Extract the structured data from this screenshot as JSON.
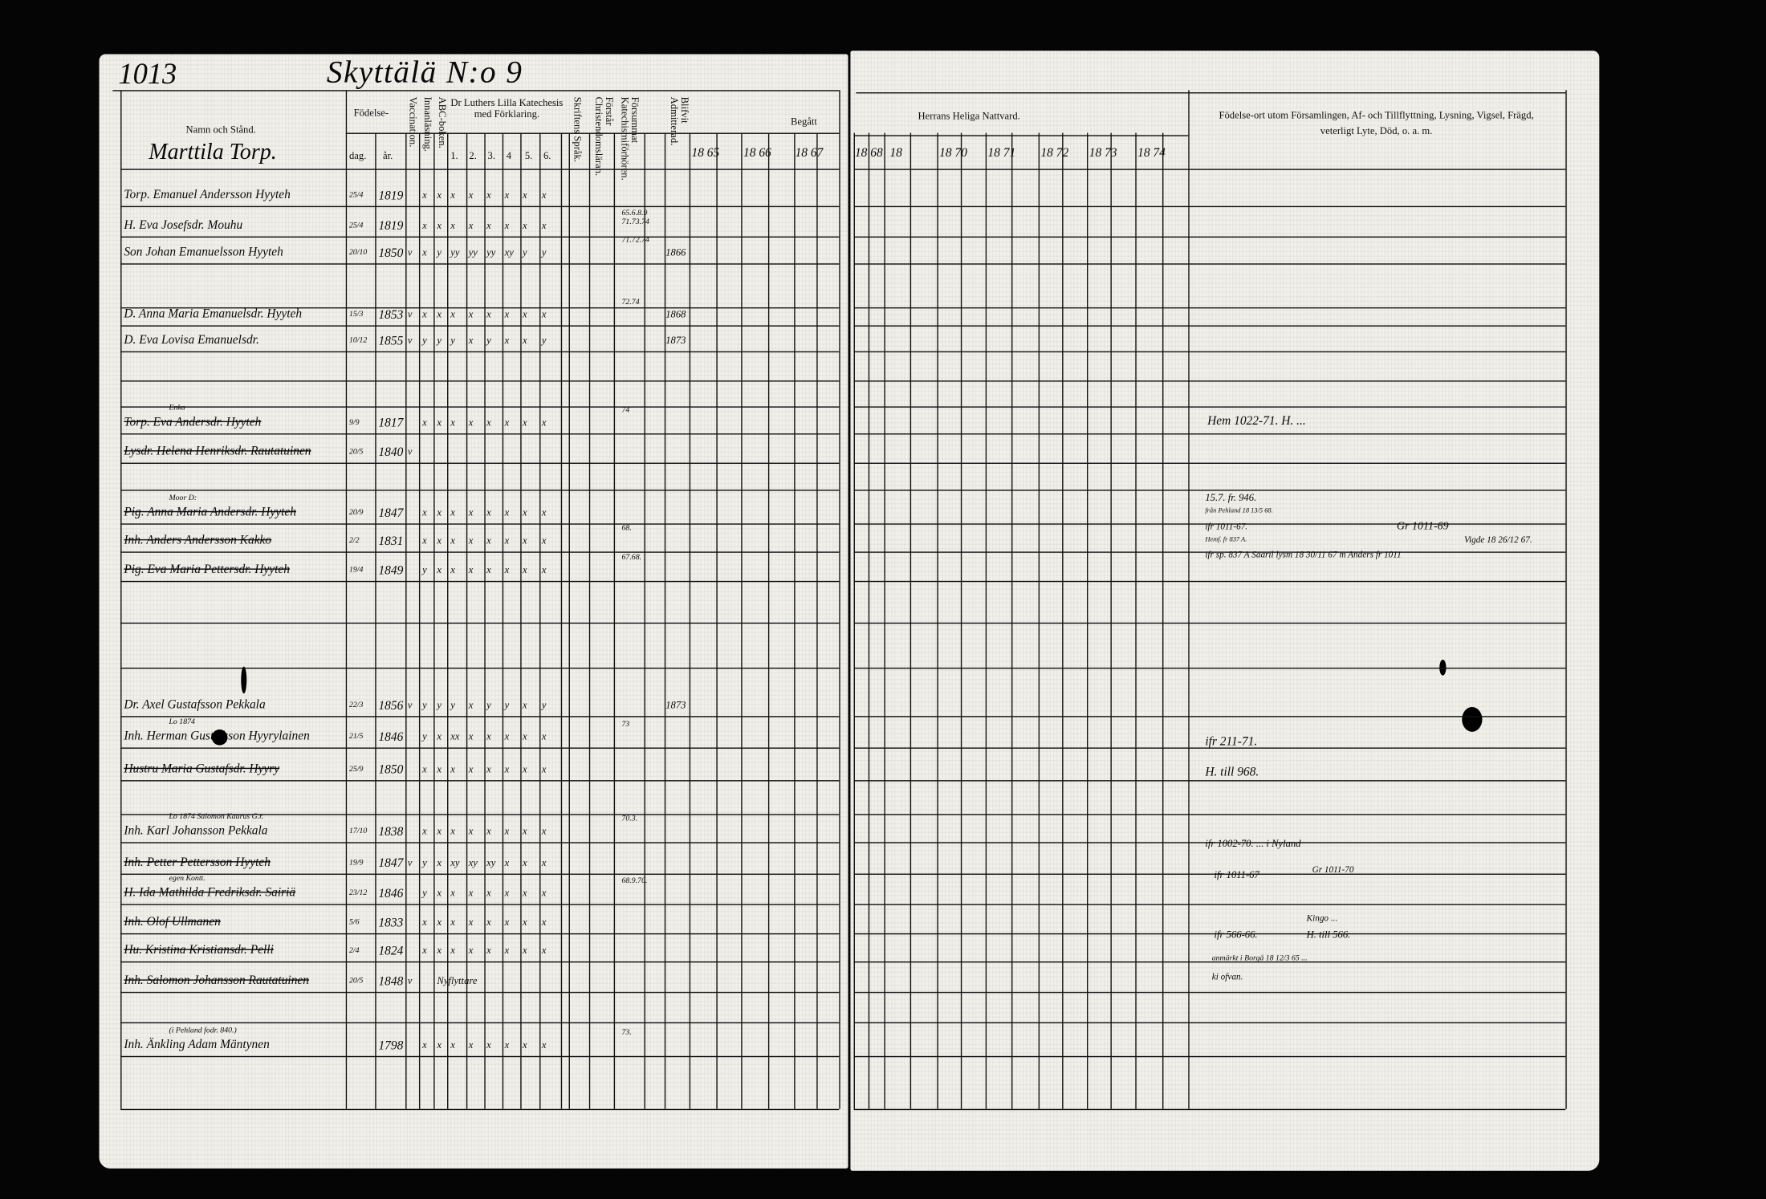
{
  "page_number": "1013",
  "village_heading": "Skyttälä N:o 9",
  "household_heading": "Marttila Torp.",
  "headers": {
    "name": "Namn och Stånd.",
    "birth": "Födelse-",
    "birth_day": "dag.",
    "birth_year": "år.",
    "vaccination": "Vaccination.",
    "reading": "Innanläsning.",
    "abc": "ABC-boken.",
    "catechism": "Dr Luthers Lilla Katechesis med Förklaring.",
    "catechism_cols": [
      "1.",
      "2.",
      "3.",
      "4",
      "5.",
      "6."
    ],
    "scripture": "Skriftens Språk.",
    "christian_doctrine": "Förstår Christendomsläran.",
    "missed_examination": "Försummat Katechismiförhören.",
    "admitted": "Blifvit Admitterad.",
    "begun": "Begått",
    "communion": "Herrans Heliga Nattvard.",
    "years_left": [
      "18 65",
      "18 66",
      "18 67"
    ],
    "years_right": [
      "18 68",
      "18",
      "18 70",
      "18 71",
      "18 72",
      "18 73",
      "18 74"
    ],
    "remarks": "Födelse-ort utom Församlingen, Af- och Tillflyttning, Lysning, Vigsel, Frägd, veterligt Lyte, Död, o. a. m."
  },
  "rows": [
    {
      "name": "Torp. Emanuel Andersson Hyyteh",
      "day": "25/4",
      "year": "1819",
      "marks": [
        "",
        "x",
        "x",
        "x",
        "x",
        "x",
        "x",
        "x",
        "x"
      ],
      "struck": false,
      "note": "",
      "exam": "",
      "admit": ""
    },
    {
      "name": "H. Eva Josefsdr. Mouhu",
      "day": "25/4",
      "year": "1819",
      "marks": [
        "",
        "x",
        "x",
        "x",
        "x",
        "x",
        "x",
        "x",
        "x"
      ],
      "struck": false,
      "note": "",
      "exam": "65.6.8.9 71.73.74",
      "admit": ""
    },
    {
      "name": "Son Johan Emanuelsson Hyyteh",
      "day": "20/10",
      "year": "1850",
      "marks": [
        "v",
        "x",
        "y",
        "yy",
        "yy",
        "yy",
        "xy",
        "y",
        "y"
      ],
      "struck": false,
      "note": "",
      "exam": "71.72.74",
      "admit": "1866"
    },
    {
      "name": "D. Anna Maria Emanuelsdr. Hyyteh",
      "day": "15/3",
      "year": "1853",
      "marks": [
        "v",
        "x",
        "x",
        "x",
        "x",
        "x",
        "x",
        "x",
        "x"
      ],
      "struck": false,
      "note": "",
      "exam": "72.74",
      "admit": "1868"
    },
    {
      "name": "D. Eva Lovisa Emanuelsdr.",
      "day": "10/12",
      "year": "1855",
      "marks": [
        "v",
        "y",
        "y",
        "y",
        "x",
        "y",
        "x",
        "x",
        "y"
      ],
      "struck": false,
      "note": "",
      "exam": "",
      "admit": "1873"
    },
    {
      "name": "Torp. Eva Andersdr. Hyyteh",
      "day": "9/9",
      "year": "1817",
      "marks": [
        "",
        "x",
        "x",
        "x",
        "x",
        "x",
        "x",
        "x",
        "x"
      ],
      "struck": true,
      "note": "Enka",
      "exam": "74",
      "admit": ""
    },
    {
      "name": "Lysdr. Helena Henriksdr. Rautatuinen",
      "day": "20/5",
      "year": "1840",
      "marks": [
        "v",
        "",
        "",
        "",
        "",
        "",
        "",
        "",
        ""
      ],
      "struck": true,
      "note": "",
      "exam": "",
      "admit": ""
    },
    {
      "name": "Pig. Anna Maria Andersdr. Hyyteh",
      "day": "20/9",
      "year": "1847",
      "marks": [
        "",
        "x",
        "x",
        "x",
        "x",
        "x",
        "x",
        "x",
        "x"
      ],
      "struck": true,
      "note": "Moor D:",
      "exam": "",
      "admit": ""
    },
    {
      "name": "Inh. Anders Andersson Kakko",
      "day": "2/2",
      "year": "1831",
      "marks": [
        "",
        "x",
        "x",
        "x",
        "x",
        "x",
        "x",
        "x",
        "x"
      ],
      "struck": true,
      "note": "",
      "exam": "68.",
      "admit": ""
    },
    {
      "name": "Pig. Eva Maria Pettersdr. Hyyteh",
      "day": "19/4",
      "year": "1849",
      "marks": [
        "",
        "y",
        "x",
        "x",
        "x",
        "x",
        "x",
        "x",
        "x"
      ],
      "struck": true,
      "note": "",
      "exam": "67.68.",
      "admit": ""
    },
    {
      "name": "Dr. Axel Gustafsson Pekkala",
      "day": "22/3",
      "year": "1856",
      "marks": [
        "v",
        "y",
        "y",
        "y",
        "x",
        "y",
        "y",
        "x",
        "y"
      ],
      "struck": false,
      "note": "",
      "exam": "",
      "admit": "1873"
    },
    {
      "name": "Inh. Herman Gustafsson Hyyrylainen",
      "day": "21/5",
      "year": "1846",
      "marks": [
        "",
        "y",
        "x",
        "xx",
        "x",
        "x",
        "x",
        "x",
        "x"
      ],
      "struck": false,
      "note": "Lo 1874",
      "exam": "73",
      "admit": ""
    },
    {
      "name": "Hustru Maria Gustafsdr. Hyyry",
      "day": "25/9",
      "year": "1850",
      "marks": [
        "",
        "x",
        "x",
        "x",
        "x",
        "x",
        "x",
        "x",
        "x"
      ],
      "struck": true,
      "note": "",
      "exam": "",
      "admit": ""
    },
    {
      "name": "Inh. Karl Johansson Pekkala",
      "day": "17/10",
      "year": "1838",
      "marks": [
        "",
        "x",
        "x",
        "x",
        "x",
        "x",
        "x",
        "x",
        "x"
      ],
      "struck": false,
      "note": "Lo 1874 Salomon Kaurus G.r.",
      "exam": "70.3.",
      "admit": ""
    },
    {
      "name": "Inh. Petter Pettersson Hyyteh",
      "day": "19/9",
      "year": "1847",
      "marks": [
        "v",
        "y",
        "x",
        "xy",
        "xy",
        "xy",
        "x",
        "x",
        "x"
      ],
      "struck": true,
      "note": "",
      "exam": "",
      "admit": ""
    },
    {
      "name": "H. Ida Mathilda Fredriksdr. Sairiä",
      "day": "23/12",
      "year": "1846",
      "marks": [
        "",
        "y",
        "x",
        "x",
        "x",
        "x",
        "x",
        "x",
        "x"
      ],
      "struck": true,
      "note": "egen Kontt.",
      "exam": "68.9.70.",
      "admit": ""
    },
    {
      "name": "Inh. Olof Ullmanen",
      "day": "5/6",
      "year": "1833",
      "marks": [
        "",
        "x",
        "x",
        "x",
        "x",
        "x",
        "x",
        "x",
        "x"
      ],
      "struck": true,
      "note": "",
      "exam": "",
      "admit": ""
    },
    {
      "name": "Hu. Kristina Kristiansdr. Pelli",
      "day": "2/4",
      "year": "1824",
      "marks": [
        "",
        "x",
        "x",
        "x",
        "x",
        "x",
        "x",
        "x",
        "x"
      ],
      "struck": true,
      "note": "",
      "exam": "",
      "admit": ""
    },
    {
      "name": "Inh. Salomon Johansson Rautatuinen",
      "day": "20/5",
      "year": "1848",
      "marks": [
        "v",
        "",
        "Nyflyttare",
        "",
        "",
        "",
        "",
        "",
        ""
      ],
      "struck": true,
      "note": "",
      "exam": "",
      "admit": ""
    },
    {
      "name": "Inh. Änkling Adam Mäntynen",
      "day": "",
      "year": "1798",
      "marks": [
        "",
        "x",
        "x",
        "x",
        "x",
        "x",
        "x",
        "x",
        "x"
      ],
      "struck": false,
      "note": "(i Pehland fodr. 840.)",
      "exam": "73.",
      "admit": ""
    }
  ],
  "remarks": [
    "Hem 1022-71. H. ...",
    "15.7. fr. 946.",
    "från Pehland 18 13/5 68.",
    "ifr 1011-67.",
    "Hemf. fr 837 A.",
    "ifr sp. 837 A  Saaril lysm 18 30/11 67 m Anders fr 1011",
    "Gr 1011-69",
    "Vigde 18 26/12 67.",
    "ifr 211-71.",
    "H. till 968.",
    "ifr 1002-70. ... i Nyland",
    "ifr 1011-67",
    "Gr 1011-70",
    "ifr 566-66.",
    "Kingo ...",
    "H. till 566.",
    "anmärkt i Borgå 18 12/3 65 ...",
    "ki ofvan."
  ]
}
